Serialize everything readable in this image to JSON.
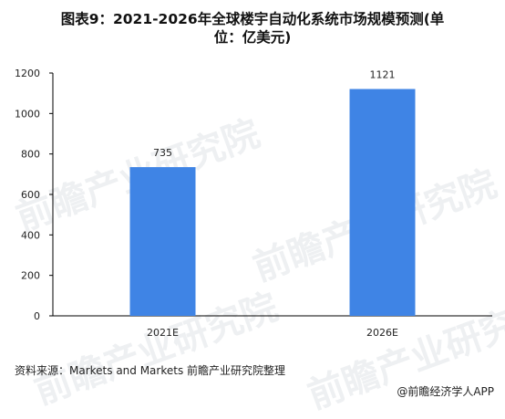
{
  "title_line1": "图表9：2021-2026年全球楼宇自动化系统市场规模预测(单",
  "title_line2": "位：亿美元)",
  "watermark": "前瞻产业研究院",
  "source": "资料来源：Markets and Markets 前瞻产业研究院整理",
  "credit": "@前瞻经济学人APP",
  "colors": {
    "bar": "#3f84e5",
    "axis": "#000000"
  },
  "chart_data": {
    "type": "bar",
    "categories": [
      "2021E",
      "2026E"
    ],
    "values": [
      735,
      1121
    ],
    "ylim": [
      0,
      1200
    ],
    "yticks": [
      0,
      200,
      400,
      600,
      800,
      1000,
      1200
    ],
    "xlabel": "",
    "ylabel": "",
    "grid": false
  }
}
